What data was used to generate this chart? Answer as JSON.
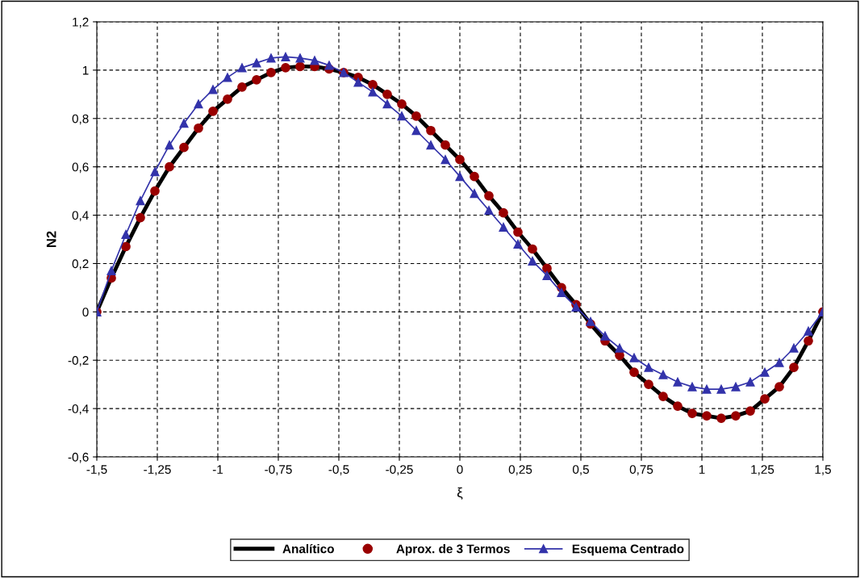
{
  "chart_data": {
    "type": "line",
    "xlabel": "ξ",
    "ylabel": "N2",
    "grid": true,
    "legend": "bottom",
    "x": [
      -1.5,
      -1.44,
      -1.38,
      -1.32,
      -1.26,
      -1.2,
      -1.14,
      -1.08,
      -1.02,
      -0.96,
      -0.9,
      -0.84,
      -0.78,
      -0.72,
      -0.66,
      -0.6,
      -0.54,
      -0.48,
      -0.42,
      -0.36,
      -0.3,
      -0.24,
      -0.18,
      -0.12,
      -0.06,
      0,
      0.06,
      0.12,
      0.18,
      0.24,
      0.3,
      0.36,
      0.42,
      0.48,
      0.54,
      0.6,
      0.66,
      0.72,
      0.78,
      0.84,
      0.9,
      0.96,
      1.02,
      1.08,
      1.14,
      1.2,
      1.26,
      1.32,
      1.38,
      1.44,
      1.5
    ],
    "xlim": [
      -1.5,
      1.5
    ],
    "xticks": [
      {
        "value": -1.5,
        "label": "-1,5"
      },
      {
        "value": -1.25,
        "label": "-1,25"
      },
      -1,
      {
        "value": -0.75,
        "label": "-0,75"
      },
      {
        "value": -0.5,
        "label": "-0,5"
      },
      {
        "value": -0.25,
        "label": "-0,25"
      },
      0,
      {
        "value": 0.25,
        "label": "0,25"
      },
      {
        "value": 0.5,
        "label": "0,5"
      },
      {
        "value": 0.75,
        "label": "0,75"
      },
      1,
      {
        "value": 1.25,
        "label": "1,25"
      },
      {
        "value": 1.5,
        "label": "1,5"
      }
    ],
    "ylim": [
      -0.6,
      1.2
    ],
    "yticks": [
      {
        "value": -0.6,
        "label": "-0,6"
      },
      {
        "value": -0.4,
        "label": "-0,4"
      },
      {
        "value": -0.2,
        "label": "-0,2"
      },
      0,
      {
        "value": 0.2,
        "label": "0,2"
      },
      {
        "value": 0.4,
        "label": "0,4"
      },
      {
        "value": 0.6,
        "label": "0,6"
      },
      {
        "value": 0.8,
        "label": "0,8"
      },
      1,
      {
        "value": 1.2,
        "label": "1,2"
      }
    ],
    "series": [
      {
        "name": "Analítico",
        "type": "line",
        "marker": "none",
        "color": "#000000",
        "values": [
          0,
          0.14,
          0.27,
          0.39,
          0.5,
          0.6,
          0.68,
          0.76,
          0.83,
          0.88,
          0.93,
          0.96,
          0.99,
          1.01,
          1.015,
          1.015,
          1.005,
          0.99,
          0.97,
          0.94,
          0.9,
          0.86,
          0.81,
          0.75,
          0.69,
          0.63,
          0.56,
          0.48,
          0.41,
          0.33,
          0.26,
          0.18,
          0.1,
          0.03,
          -0.05,
          -0.12,
          -0.18,
          -0.25,
          -0.3,
          -0.35,
          -0.39,
          -0.42,
          -0.43,
          -0.44,
          -0.43,
          -0.41,
          -0.36,
          -0.31,
          -0.23,
          -0.12,
          0
        ]
      },
      {
        "name": "Aprox. de 3 Termos",
        "type": "scatter",
        "marker": "circle",
        "color": "#990000",
        "values": [
          0,
          0.14,
          0.27,
          0.39,
          0.5,
          0.6,
          0.68,
          0.76,
          0.83,
          0.88,
          0.93,
          0.96,
          0.99,
          1.01,
          1.015,
          1.015,
          1.005,
          0.99,
          0.97,
          0.94,
          0.9,
          0.86,
          0.81,
          0.75,
          0.69,
          0.63,
          0.56,
          0.48,
          0.41,
          0.33,
          0.26,
          0.18,
          0.1,
          0.03,
          -0.05,
          -0.12,
          -0.18,
          -0.25,
          -0.3,
          -0.35,
          -0.39,
          -0.42,
          -0.43,
          -0.44,
          -0.43,
          -0.41,
          -0.36,
          -0.31,
          -0.23,
          -0.12,
          0
        ]
      },
      {
        "name": "Esquema Centrado",
        "type": "line",
        "marker": "triangle",
        "color": "#3333aa",
        "values": [
          0,
          0.17,
          0.32,
          0.46,
          0.58,
          0.69,
          0.78,
          0.86,
          0.92,
          0.97,
          1.01,
          1.03,
          1.05,
          1.055,
          1.05,
          1.04,
          1.02,
          0.99,
          0.95,
          0.91,
          0.86,
          0.81,
          0.75,
          0.69,
          0.63,
          0.56,
          0.49,
          0.42,
          0.35,
          0.28,
          0.21,
          0.15,
          0.08,
          0.02,
          -0.04,
          -0.1,
          -0.15,
          -0.19,
          -0.23,
          -0.26,
          -0.29,
          -0.31,
          -0.32,
          -0.32,
          -0.31,
          -0.29,
          -0.25,
          -0.21,
          -0.15,
          -0.08,
          0
        ]
      }
    ]
  }
}
